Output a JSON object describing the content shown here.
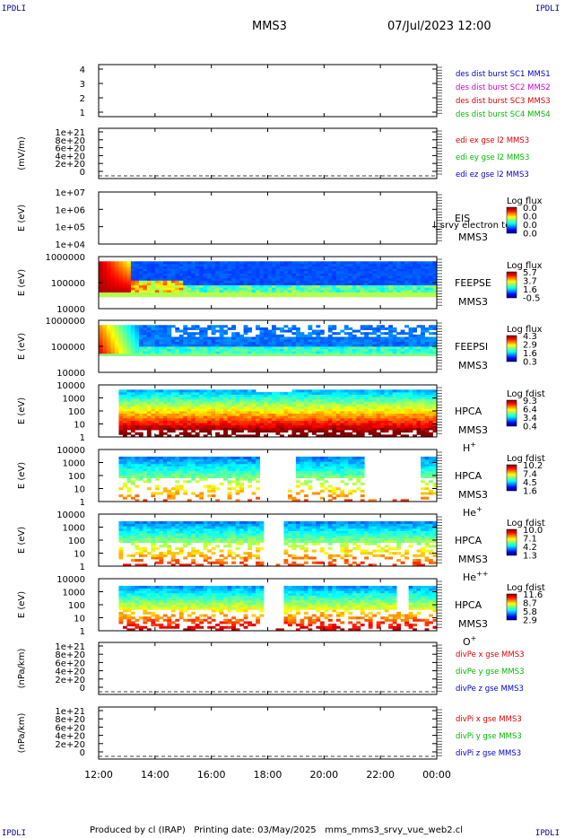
{
  "header": {
    "corner_label": "IPDLI",
    "spacecraft": "MMS3",
    "datetime": "07/Jul/2023 12:00"
  },
  "footer": {
    "produced_by": "Produced by cl (IRAP)",
    "printing_date": "Printing date: 03/May/2025",
    "script_name": "mms_mms3_srvy_vue_web2.cl"
  },
  "time_axis": {
    "tick_labels": [
      "12:00",
      "14:00",
      "16:00",
      "18:00",
      "20:00",
      "22:00",
      "00:00"
    ]
  },
  "colors": {
    "blue": "#0000cc",
    "magenta": "#cc00cc",
    "red": "#dd0000",
    "green": "#00bb00"
  },
  "chart_data": [
    {
      "type": "line",
      "panel": "burst",
      "yticks": [
        "4",
        "3",
        "2",
        "1"
      ],
      "ylim": [
        0.5,
        4.5
      ],
      "legend": [
        {
          "label": "des dist burst SC1 MMS1",
          "color": "#0000cc"
        },
        {
          "label": "des dist burst SC2 MMS2",
          "color": "#cc00cc"
        },
        {
          "label": "des dist burst SC3 MMS3",
          "color": "#dd0000"
        },
        {
          "label": "des dist burst SC4 MMS4",
          "color": "#00bb00"
        }
      ]
    },
    {
      "type": "line",
      "panel": "edi",
      "ylabel": "(mV/m)",
      "yticks": [
        "1e+21",
        "8e+20",
        "6e+20",
        "4e+20",
        "2e+20",
        "0"
      ],
      "ylim": [
        0,
        1e+21
      ],
      "legend": [
        {
          "label": "edi ex gse l2 MMS3",
          "color": "#dd0000"
        },
        {
          "label": "edi ey gse l2 MMS3",
          "color": "#00bb00"
        },
        {
          "label": "edi ez gse l2 MMS3",
          "color": "#0000cc"
        }
      ]
    },
    {
      "type": "heatmap",
      "panel": "eis",
      "ylabel": "E (eV)",
      "yticks": [
        "1e+07",
        "1e+06",
        "1e+05",
        "1e+04"
      ],
      "ylim": [
        10000,
        10000000
      ],
      "labels": [
        "EIS",
        "MMS3"
      ],
      "overlay_text": "l_srvy electron to",
      "colorbar_title": "Log flux",
      "colorbar_ticks": [
        "0.0",
        "0.0",
        "0.0",
        "0.0"
      ]
    },
    {
      "type": "heatmap",
      "panel": "feepse",
      "ylabel": "E (eV)",
      "yticks": [
        "1000000",
        "100000",
        "10000"
      ],
      "ylim": [
        10000,
        1000000
      ],
      "labels": [
        "FEEPSE",
        "MMS3"
      ],
      "colorbar_title": "Log flux",
      "colorbar_ticks": [
        "5.7",
        "3.7",
        "1.6",
        "-0.5"
      ]
    },
    {
      "type": "heatmap",
      "panel": "feepsi",
      "ylabel": "E (eV)",
      "yticks": [
        "1000000",
        "100000",
        "10000"
      ],
      "ylim": [
        10000,
        1000000
      ],
      "labels": [
        "FEEPSI",
        "MMS3"
      ],
      "colorbar_title": "Log flux",
      "colorbar_ticks": [
        "4.3",
        "2.9",
        "1.6",
        "0.3"
      ]
    },
    {
      "type": "heatmap",
      "panel": "hpca_h",
      "ylabel": "E (eV)",
      "yticks": [
        "10000",
        "1000",
        "100",
        "10",
        "1"
      ],
      "ylim": [
        1,
        40000
      ],
      "labels": [
        "HPCA",
        "MMS3"
      ],
      "species": "H",
      "species_sup": "+",
      "colorbar_title": "Log fdist",
      "colorbar_ticks": [
        "9.3",
        "6.4",
        "3.4",
        "0.4"
      ]
    },
    {
      "type": "heatmap",
      "panel": "hpca_he",
      "ylabel": "E (eV)",
      "yticks": [
        "10000",
        "1000",
        "100",
        "10",
        "1"
      ],
      "ylim": [
        1,
        40000
      ],
      "labels": [
        "HPCA",
        "MMS3"
      ],
      "species": "He",
      "species_sup": "+",
      "colorbar_title": "Log fdist",
      "colorbar_ticks": [
        "10.2",
        "7.4",
        "4.5",
        "1.6"
      ]
    },
    {
      "type": "heatmap",
      "panel": "hpca_hepp",
      "ylabel": "E (eV)",
      "yticks": [
        "10000",
        "1000",
        "100",
        "10",
        "1"
      ],
      "ylim": [
        1,
        40000
      ],
      "labels": [
        "HPCA",
        "MMS3"
      ],
      "species": "He",
      "species_sup": "++",
      "colorbar_title": "Log fdist",
      "colorbar_ticks": [
        "10.0",
        "7.1",
        "4.2",
        "1.3"
      ]
    },
    {
      "type": "heatmap",
      "panel": "hpca_o",
      "ylabel": "E (eV)",
      "yticks": [
        "10000",
        "1000",
        "100",
        "10",
        "1"
      ],
      "ylim": [
        1,
        40000
      ],
      "labels": [
        "HPCA",
        "MMS3"
      ],
      "species": "O",
      "species_sup": "+",
      "colorbar_title": "Log fdist",
      "colorbar_ticks": [
        "11.6",
        "8.7",
        "5.8",
        "2.9"
      ]
    },
    {
      "type": "line",
      "panel": "divpe",
      "ylabel": "(nPa/km)",
      "yticks": [
        "1e+21",
        "8e+20",
        "6e+20",
        "4e+20",
        "2e+20",
        "0"
      ],
      "ylim": [
        0,
        1e+21
      ],
      "legend": [
        {
          "label": "divPe x gse MMS3",
          "color": "#dd0000"
        },
        {
          "label": "divPe y gse MMS3",
          "color": "#00bb00"
        },
        {
          "label": "divPe z gse MMS3",
          "color": "#0000cc"
        }
      ]
    },
    {
      "type": "line",
      "panel": "divpi",
      "ylabel": "(nPa/km)",
      "yticks": [
        "1e+21",
        "8e+20",
        "6e+20",
        "4e+20",
        "2e+20",
        "0"
      ],
      "ylim": [
        0,
        1e+21
      ],
      "legend": [
        {
          "label": "divPi x gse MMS3",
          "color": "#dd0000"
        },
        {
          "label": "divPi y gse MMS3",
          "color": "#00bb00"
        },
        {
          "label": "divPi z gse MMS3",
          "color": "#0000cc"
        }
      ]
    }
  ]
}
